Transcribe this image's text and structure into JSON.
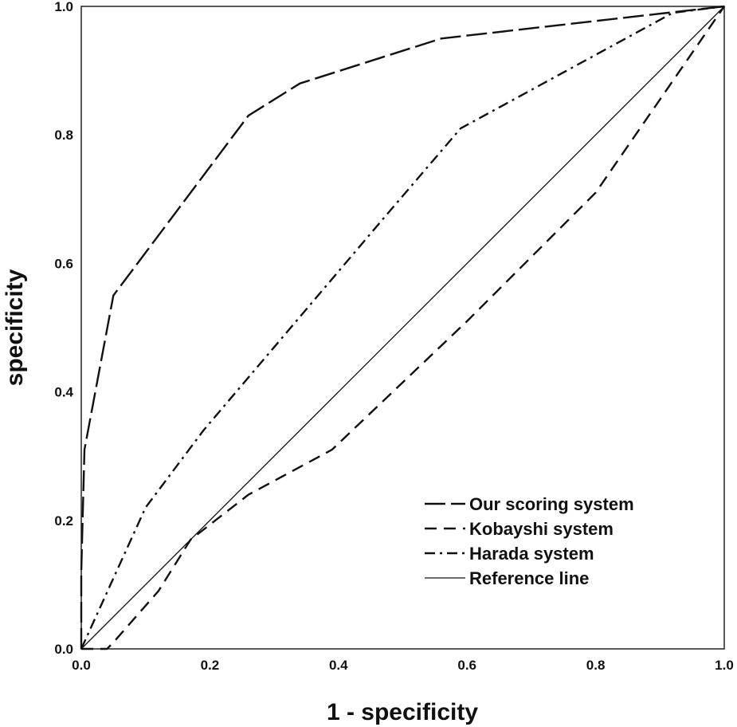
{
  "chart_data": {
    "type": "line",
    "xlabel": "1 - specificity",
    "ylabel": "specificity",
    "xlim": [
      0,
      1
    ],
    "ylim": [
      0,
      1
    ],
    "x_ticks": [
      "0.0",
      "0.2",
      "0.4",
      "0.6",
      "0.8",
      "1.0"
    ],
    "y_ticks": [
      "0.0",
      "0.2",
      "0.4",
      "0.6",
      "0.8",
      "1.0"
    ],
    "legend_position": "bottom-right",
    "grid": false,
    "series": [
      {
        "name": "Our scoring system",
        "style": "long-dash",
        "x": [
          0.0,
          0.0,
          0.005,
          0.05,
          0.26,
          0.34,
          0.56,
          1.0
        ],
        "y": [
          0.0,
          0.12,
          0.31,
          0.55,
          0.83,
          0.88,
          0.95,
          1.0
        ]
      },
      {
        "name": "Kobayshi system",
        "style": "dash",
        "x": [
          0.0,
          0.04,
          0.05,
          0.12,
          0.17,
          0.26,
          0.39,
          0.6,
          0.8,
          1.0
        ],
        "y": [
          0.0,
          0.0,
          0.01,
          0.09,
          0.17,
          0.24,
          0.31,
          0.51,
          0.71,
          1.0
        ]
      },
      {
        "name": "Harada system",
        "style": "dash-dot",
        "x": [
          0.0,
          0.1,
          0.19,
          0.47,
          0.59,
          0.92,
          1.0
        ],
        "y": [
          0.0,
          0.22,
          0.34,
          0.67,
          0.81,
          0.99,
          1.0
        ]
      },
      {
        "name": "Reference line",
        "style": "solid",
        "x": [
          0.0,
          1.0
        ],
        "y": [
          0.0,
          1.0
        ]
      }
    ]
  }
}
